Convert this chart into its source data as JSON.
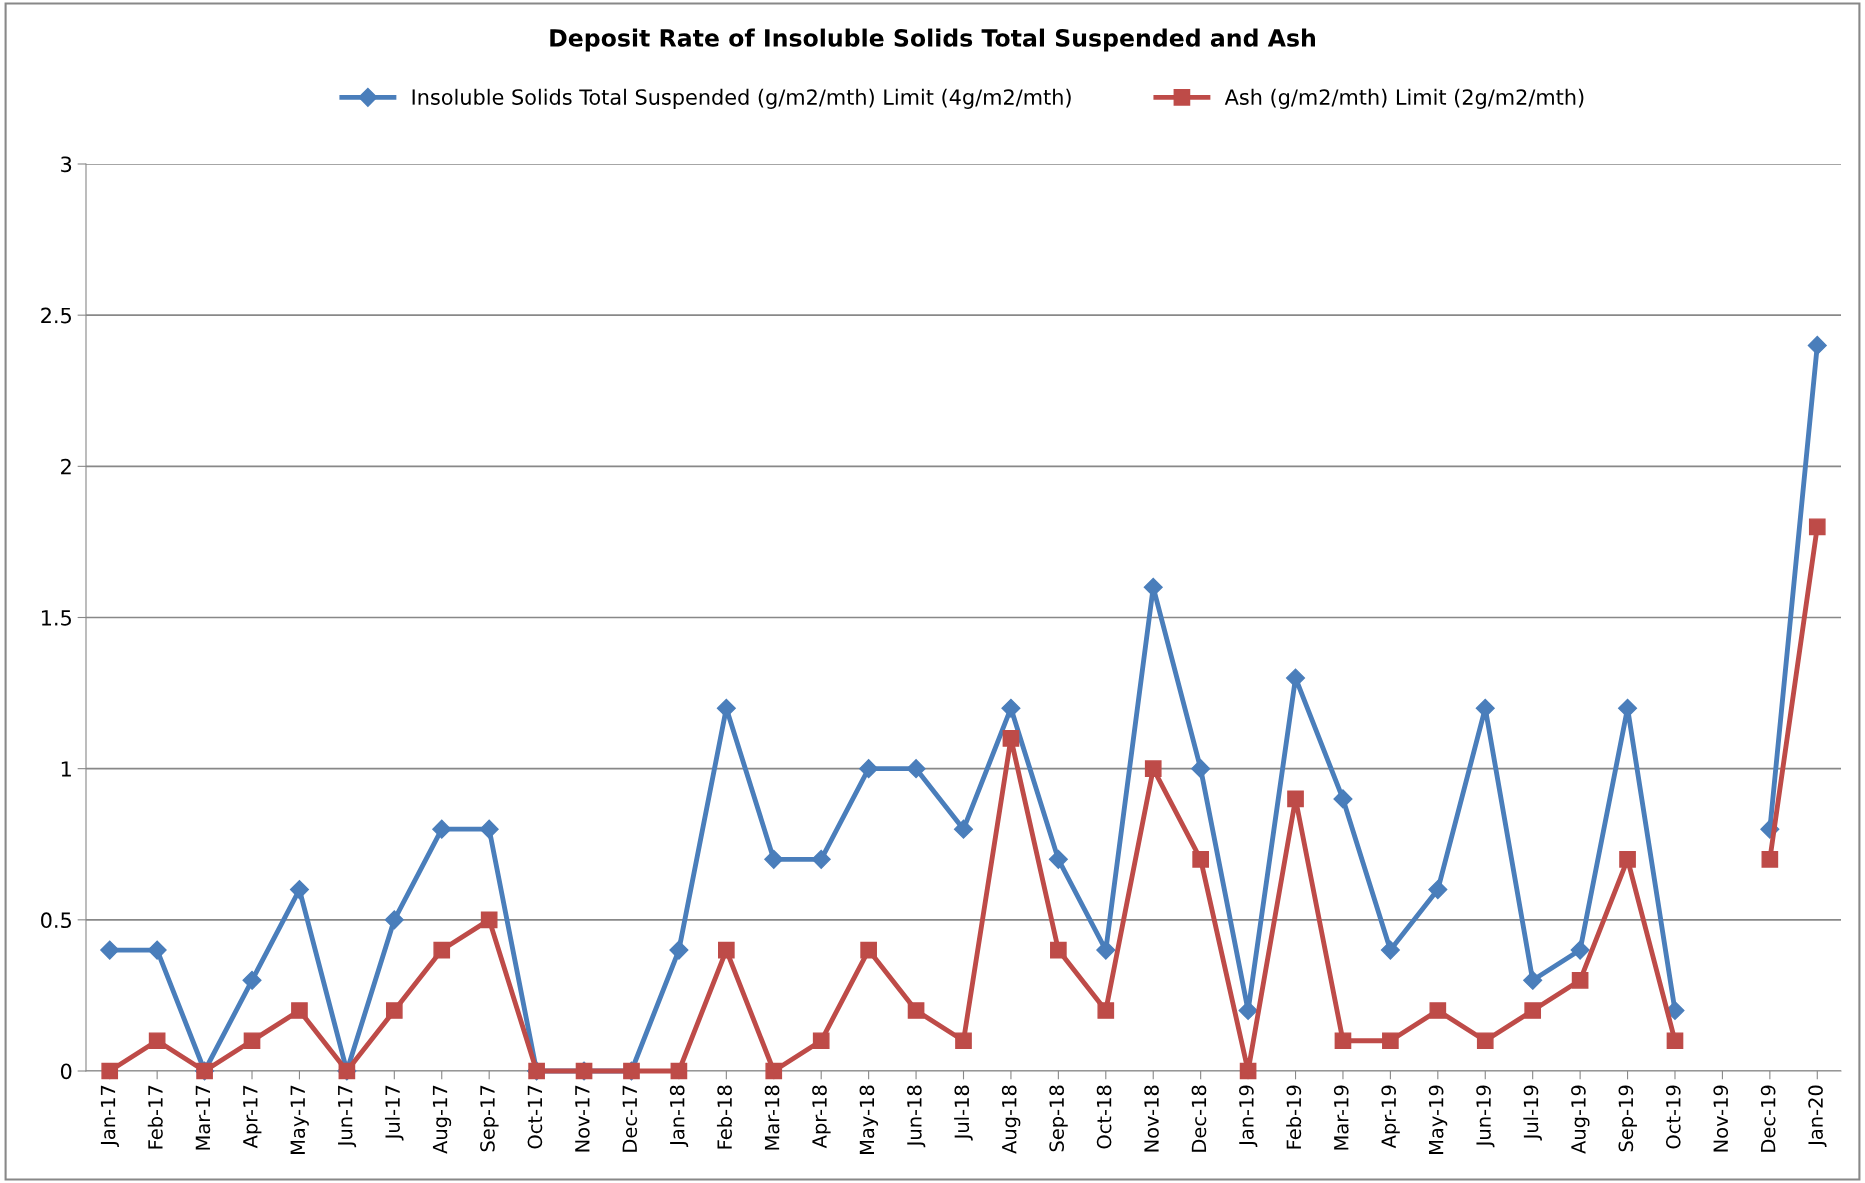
{
  "chart_data": {
    "type": "line",
    "title": "Deposit Rate of Insoluble Solids Total Suspended and Ash",
    "categories": [
      "Jan-17",
      "Feb-17",
      "Mar-17",
      "Apr-17",
      "May-17",
      "Jun-17",
      "Jul-17",
      "Aug-17",
      "Sep-17",
      "Oct-17",
      "Nov-17",
      "Dec-17",
      "Jan-18",
      "Feb-18",
      "Mar-18",
      "Apr-18",
      "May-18",
      "Jun-18",
      "Jul-18",
      "Aug-18",
      "Sep-18",
      "Oct-18",
      "Nov-18",
      "Dec-18",
      "Jan-19",
      "Feb-19",
      "Mar-19",
      "Apr-19",
      "May-19",
      "Jun-19",
      "Jul-19",
      "Aug-19",
      "Sep-19",
      "Oct-19",
      "Nov-19",
      "Dec-19",
      "Jan-20"
    ],
    "series": [
      {
        "name": "Insoluble Solids Total Suspended (g/m2/mth) Limit (4g/m2/mth)",
        "color": "#4a7ebb",
        "marker": "diamond",
        "values": [
          0.4,
          0.4,
          0,
          0.3,
          0.6,
          0,
          0.5,
          0.8,
          0.8,
          0,
          0,
          0,
          0.4,
          1.2,
          0.7,
          0.7,
          1.0,
          1.0,
          0.8,
          1.2,
          0.7,
          0.4,
          1.6,
          1.0,
          0.2,
          1.3,
          0.9,
          0.4,
          0.6,
          1.2,
          0.3,
          0.4,
          1.2,
          0.2,
          null,
          0.8,
          2.4
        ]
      },
      {
        "name": "Ash (g/m2/mth) Limit (2g/m2/mth)",
        "color": "#be4b48",
        "marker": "square",
        "values": [
          0,
          0.1,
          0,
          0.1,
          0.2,
          0,
          0.2,
          0.4,
          0.5,
          0,
          0,
          0,
          0,
          0.4,
          0,
          0.1,
          0.4,
          0.2,
          0.1,
          1.1,
          0.4,
          0.2,
          1.0,
          0.7,
          0,
          0.9,
          0.1,
          0.1,
          0.2,
          0.1,
          0.2,
          0.3,
          0.7,
          0.1,
          null,
          0.7,
          1.8
        ]
      }
    ],
    "ylim": [
      0,
      3
    ],
    "yticks": [
      0,
      0.5,
      1,
      1.5,
      2,
      2.5,
      3
    ],
    "grid": "y",
    "legend": "top",
    "line_style": "solid"
  }
}
